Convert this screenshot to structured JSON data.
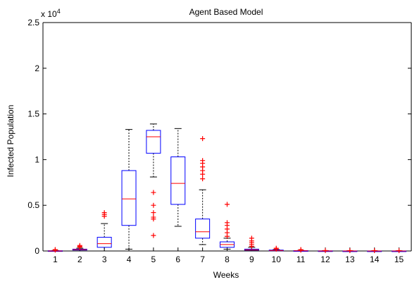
{
  "chart_data": {
    "type": "box",
    "title": "Agent Based Model",
    "xlabel": "Weeks",
    "ylabel": "Infected Population",
    "exponent_label": "x 10",
    "exponent_power": "4",
    "ylim": [
      0,
      2.5
    ],
    "ytick_values": [
      0,
      0.5,
      1,
      1.5,
      2,
      2.5
    ],
    "ytick_labels": [
      "0",
      "0.5",
      "1",
      "1.5",
      "2",
      "2.5"
    ],
    "categories": [
      "1",
      "2",
      "3",
      "4",
      "5",
      "6",
      "7",
      "8",
      "9",
      "10",
      "11",
      "12",
      "13",
      "14",
      "15"
    ],
    "box_color": "#0000ff",
    "median_color": "#ff0000",
    "whisker_color": "#000000",
    "outlier_color": "#ff0000",
    "boxes": [
      {
        "week": "1",
        "min": 0.0,
        "q1": 0.0,
        "median": 0.0,
        "q3": 0.003,
        "max": 0.006,
        "outliers": [
          0.01,
          0.015
        ]
      },
      {
        "week": "2",
        "min": 0.0,
        "q1": 0.01,
        "median": 0.015,
        "q3": 0.02,
        "max": 0.03,
        "outliers": [
          0.04,
          0.05,
          0.06
        ]
      },
      {
        "week": "3",
        "min": 0.0,
        "q1": 0.04,
        "median": 0.08,
        "q3": 0.15,
        "max": 0.3,
        "outliers": [
          0.38,
          0.4,
          0.42
        ]
      },
      {
        "week": "4",
        "min": 0.02,
        "q1": 0.28,
        "median": 0.57,
        "q3": 0.88,
        "max": 1.33,
        "outliers": []
      },
      {
        "week": "5",
        "min": 0.81,
        "q1": 1.07,
        "median": 1.25,
        "q3": 1.32,
        "max": 1.39,
        "outliers": [
          0.64,
          0.5,
          0.42,
          0.37,
          0.35,
          0.17
        ]
      },
      {
        "week": "6",
        "min": 0.27,
        "q1": 0.51,
        "median": 0.74,
        "q3": 1.03,
        "max": 1.34,
        "outliers": []
      },
      {
        "week": "7",
        "min": 0.07,
        "q1": 0.14,
        "median": 0.21,
        "q3": 0.35,
        "max": 0.67,
        "outliers": [
          0.79,
          0.84,
          0.88,
          0.92,
          0.96,
          0.99,
          1.23
        ]
      },
      {
        "week": "8",
        "min": 0.02,
        "q1": 0.04,
        "median": 0.07,
        "q3": 0.1,
        "max": 0.14,
        "outliers": [
          0.16,
          0.2,
          0.24,
          0.28,
          0.31,
          0.51
        ]
      },
      {
        "week": "9",
        "min": 0.0,
        "q1": 0.008,
        "median": 0.012,
        "q3": 0.02,
        "max": 0.04,
        "outliers": [
          0.05,
          0.07,
          0.09,
          0.11,
          0.14
        ]
      },
      {
        "week": "10",
        "min": 0.0,
        "q1": 0.003,
        "median": 0.005,
        "q3": 0.01,
        "max": 0.015,
        "outliers": [
          0.02,
          0.03
        ]
      },
      {
        "week": "11",
        "min": 0.0,
        "q1": 0.0,
        "median": 0.002,
        "q3": 0.004,
        "max": 0.006,
        "outliers": [
          0.01,
          0.015
        ]
      },
      {
        "week": "12",
        "min": 0.0,
        "q1": 0.0,
        "median": 0.0,
        "q3": 0.002,
        "max": 0.003,
        "outliers": [
          0.005
        ]
      },
      {
        "week": "13",
        "min": 0.0,
        "q1": 0.0,
        "median": 0.0,
        "q3": 0.001,
        "max": 0.002,
        "outliers": [
          0.004
        ]
      },
      {
        "week": "14",
        "min": 0.0,
        "q1": 0.0,
        "median": 0.0,
        "q3": 0.001,
        "max": 0.002,
        "outliers": [
          0.004
        ]
      },
      {
        "week": "15",
        "min": 0.0,
        "q1": 0.0,
        "median": 0.0,
        "q3": 0.001,
        "max": 0.002,
        "outliers": [
          0.004
        ]
      }
    ]
  }
}
